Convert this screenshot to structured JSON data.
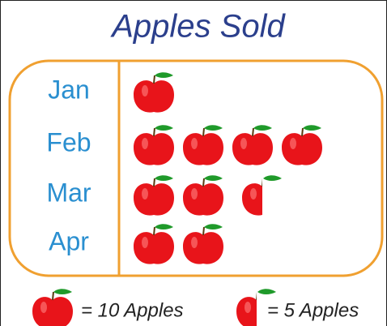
{
  "chart_data": {
    "type": "pictograph",
    "title": "Apples Sold",
    "categories": [
      "Jan",
      "Feb",
      "Mar",
      "Apr"
    ],
    "values": [
      10,
      40,
      25,
      20
    ],
    "color": "#e8141a",
    "key": [
      {
        "value": 10,
        "label": "= 10 Apples"
      },
      {
        "value": 5,
        "label": "= 5 Apples"
      }
    ]
  }
}
